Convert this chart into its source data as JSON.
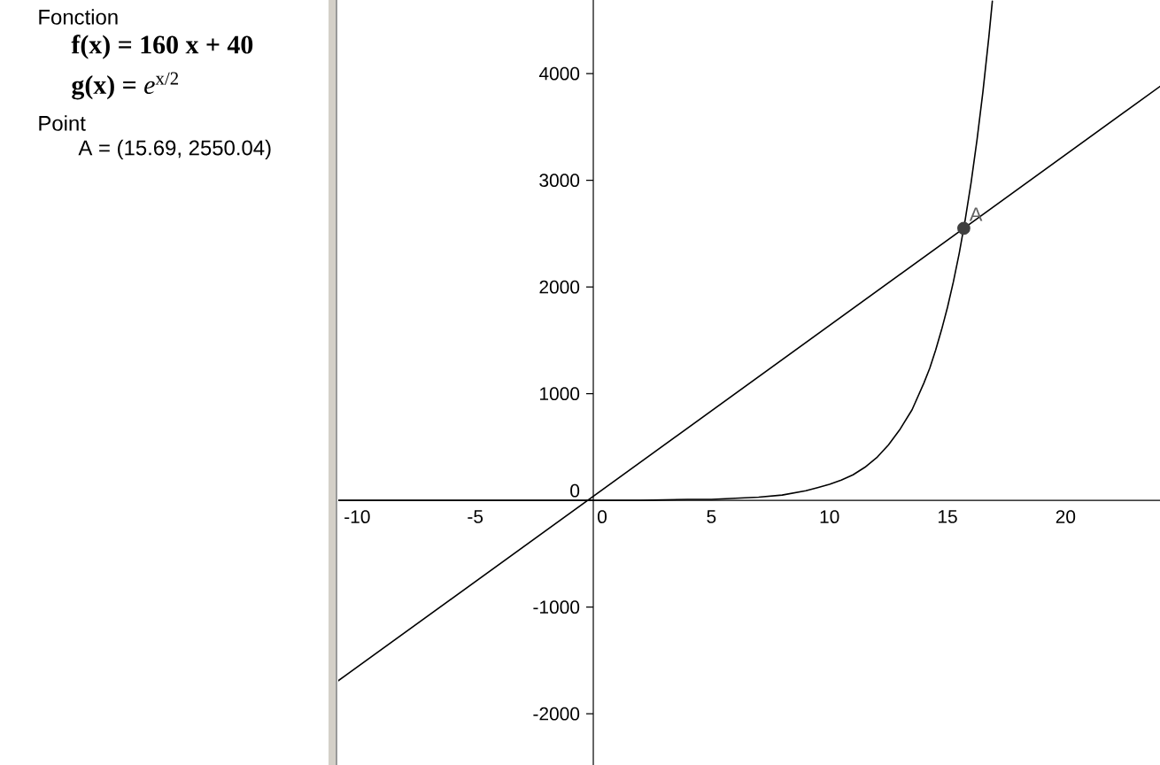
{
  "chart_data": {
    "type": "line",
    "xlim": [
      -10.8,
      24
    ],
    "ylim": [
      -2480,
      4690
    ],
    "xticks": [
      -10,
      -5,
      0,
      5,
      10,
      15,
      20
    ],
    "yticks": [
      -2000,
      -1000,
      0,
      1000,
      2000,
      3000,
      4000
    ],
    "series": [
      {
        "color": "#000000",
        "x": [
          -10.8,
          24
        ],
        "values": [
          -1690,
          3880
        ]
      },
      {
        "color": "#000000",
        "x": [
          -10.8,
          -8,
          -6,
          -4,
          -2,
          0,
          2,
          4,
          5,
          6,
          7,
          8,
          9,
          9.5,
          10,
          10.5,
          11,
          11.5,
          12,
          12.5,
          13,
          13.5,
          14,
          14.25,
          14.5,
          14.75,
          15,
          15.25,
          15.5,
          15.75,
          16,
          16.25,
          16.5,
          16.75,
          16.9
        ],
        "values": [
          0,
          0,
          0,
          0,
          0,
          0,
          0,
          10,
          10,
          20,
          30,
          50,
          90,
          120,
          150,
          190,
          240,
          310,
          400,
          520,
          670,
          850,
          1100,
          1240,
          1410,
          1600,
          1810,
          2050,
          2320,
          2630,
          2980,
          3380,
          3830,
          4340,
          4680
        ]
      },
      {
        "type": "scatter",
        "name": "A",
        "color": "#404040",
        "marker": "circle",
        "x": [
          15.69
        ],
        "values": [
          2550.04
        ]
      }
    ],
    "annotations": [
      "Fonction",
      "f(x) = 160 x + 40",
      "**g(x) =** *e*$^{x/2}$",
      "Point",
      "A = (15.69, 2550.04)"
    ]
  }
}
